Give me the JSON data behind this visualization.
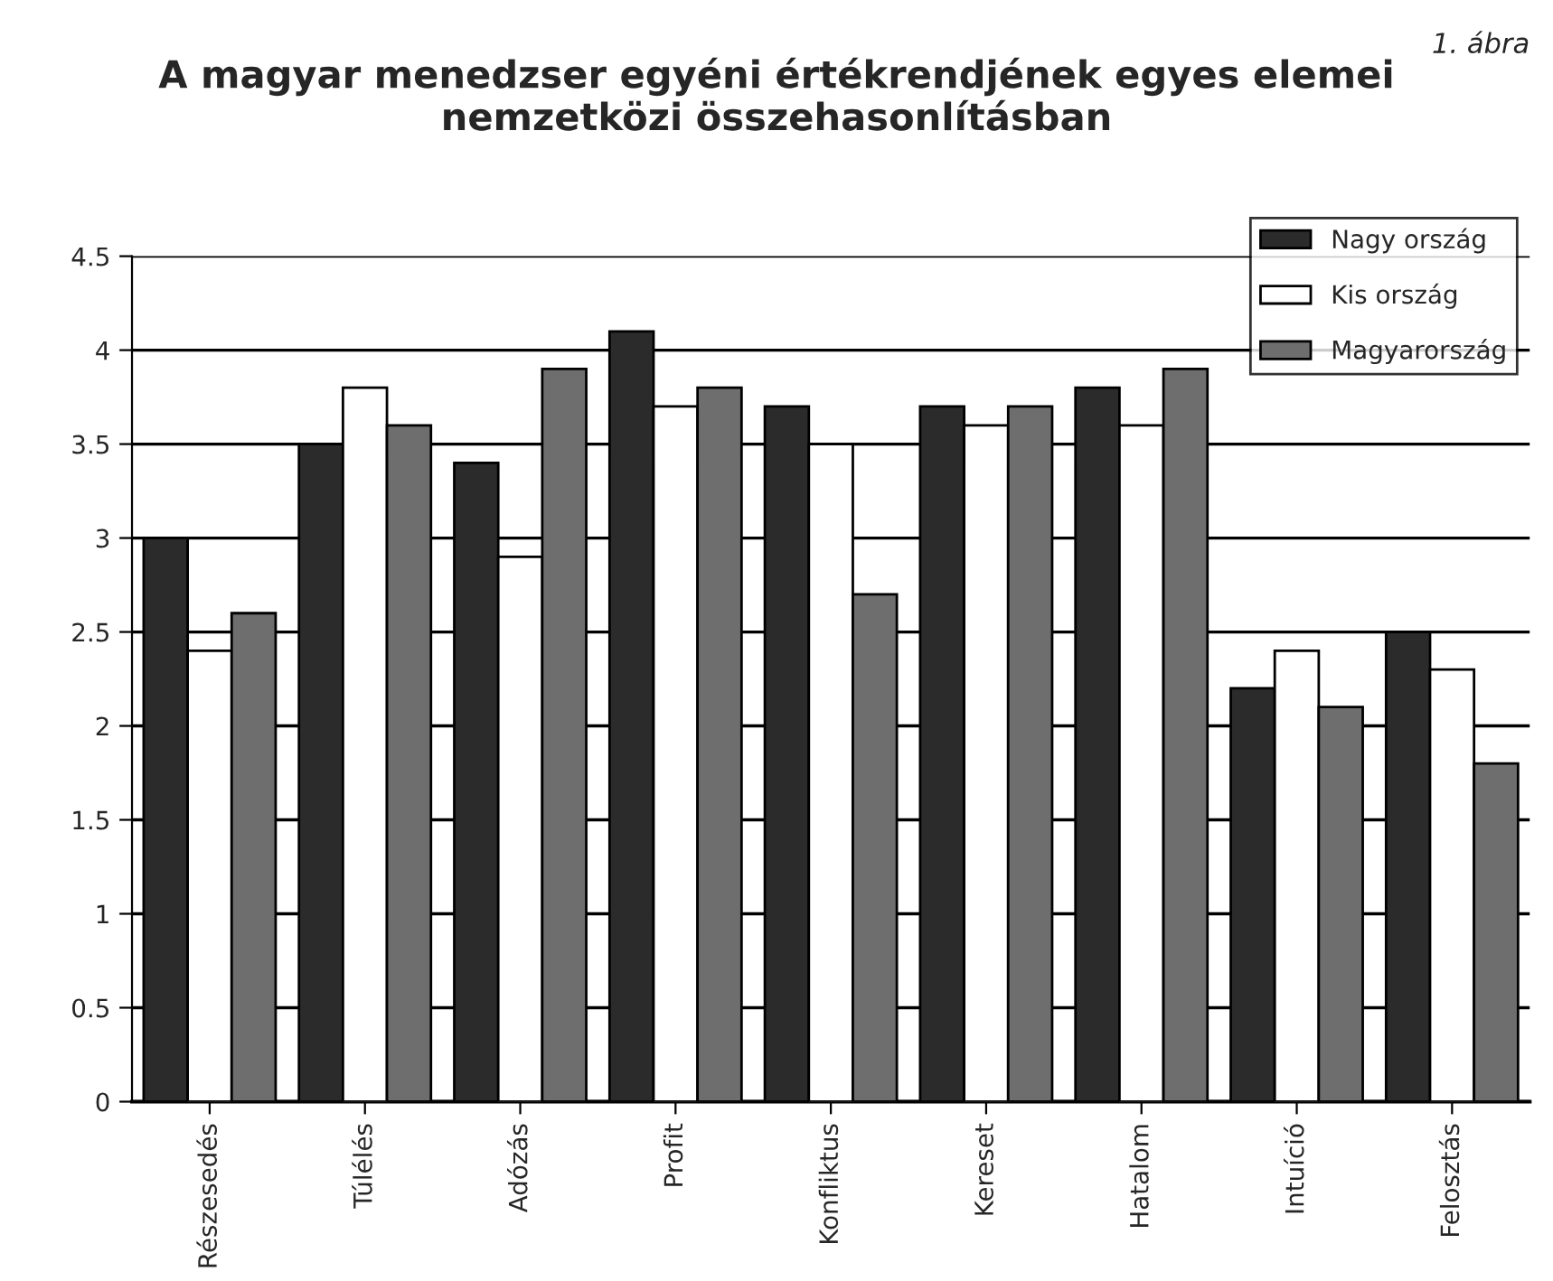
{
  "chart_data": {
    "type": "bar",
    "title": "A magyar menedzser egyéni értékrendjének egyes elemei\nnemzetközi összehasonlításban",
    "annotations": [
      "1. ábra"
    ],
    "categories": [
      "Részesedés",
      "Túlélés",
      "Adózás",
      "Profit",
      "Konfliktus",
      "Kereset",
      "Hatalom",
      "Intuíció",
      "Felosztás"
    ],
    "series": [
      {
        "name": "Nagy ország",
        "color": "#2b2b2b",
        "values": [
          3.0,
          3.5,
          3.4,
          4.1,
          3.7,
          3.7,
          3.8,
          2.2,
          2.5
        ]
      },
      {
        "name": "Kis ország",
        "color": "#ffffff",
        "values": [
          2.4,
          3.8,
          2.9,
          3.7,
          3.5,
          3.6,
          3.6,
          2.4,
          2.3
        ]
      },
      {
        "name": "Magyarország",
        "color": "#6e6e6e",
        "values": [
          2.6,
          3.6,
          3.9,
          3.8,
          2.7,
          3.7,
          3.9,
          2.1,
          1.8
        ]
      }
    ],
    "ylim": [
      0,
      4.5
    ],
    "yticks": [
      0,
      0.5,
      1,
      1.5,
      2,
      2.5,
      3,
      3.5,
      4,
      4.5
    ],
    "grid": "y",
    "legend": "top right"
  }
}
